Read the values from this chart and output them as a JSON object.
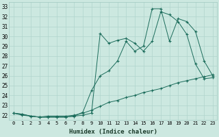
{
  "xlabel": "Humidex (Indice chaleur)",
  "ylabel": "",
  "background_color": "#cce8e0",
  "line_color": "#1a6b5a",
  "xlim": [
    -0.5,
    23.5
  ],
  "ylim": [
    21.5,
    33.5
  ],
  "yticks": [
    22,
    23,
    24,
    25,
    26,
    27,
    28,
    29,
    30,
    31,
    32,
    33
  ],
  "xticks": [
    0,
    1,
    2,
    3,
    4,
    5,
    6,
    7,
    8,
    9,
    10,
    11,
    12,
    13,
    14,
    15,
    16,
    17,
    18,
    19,
    20,
    21,
    22,
    23
  ],
  "series1_x": [
    0,
    1,
    2,
    3,
    4,
    5,
    6,
    7,
    8,
    9,
    10,
    11,
    12,
    13,
    14,
    15,
    16,
    17,
    18,
    19,
    20,
    21,
    22,
    23
  ],
  "series1_y": [
    22.2,
    22.1,
    21.9,
    21.8,
    21.8,
    21.8,
    21.8,
    21.9,
    22.0,
    22.2,
    30.3,
    29.3,
    29.6,
    29.8,
    29.3,
    28.5,
    29.5,
    32.5,
    32.2,
    31.5,
    30.2,
    27.2,
    25.7,
    25.8
  ],
  "series2_x": [
    0,
    1,
    2,
    3,
    4,
    5,
    6,
    7,
    8,
    9,
    10,
    11,
    12,
    13,
    14,
    15,
    16,
    17,
    18,
    19,
    20,
    21,
    22,
    23
  ],
  "series2_y": [
    22.2,
    22.1,
    21.9,
    21.8,
    21.8,
    21.8,
    21.8,
    21.9,
    22.3,
    24.5,
    26.0,
    26.5,
    27.5,
    29.5,
    28.5,
    29.0,
    32.8,
    32.8,
    29.5,
    31.8,
    31.5,
    30.5,
    27.5,
    26.0
  ],
  "series3_x": [
    0,
    1,
    2,
    3,
    4,
    5,
    6,
    7,
    8,
    9,
    10,
    11,
    12,
    13,
    14,
    15,
    16,
    17,
    18,
    19,
    20,
    21,
    22,
    23
  ],
  "series3_y": [
    22.2,
    22.0,
    21.9,
    21.8,
    21.9,
    21.9,
    21.9,
    22.0,
    22.2,
    22.5,
    22.9,
    23.3,
    23.5,
    23.8,
    24.0,
    24.3,
    24.5,
    24.7,
    25.0,
    25.3,
    25.5,
    25.7,
    25.9,
    26.1
  ]
}
